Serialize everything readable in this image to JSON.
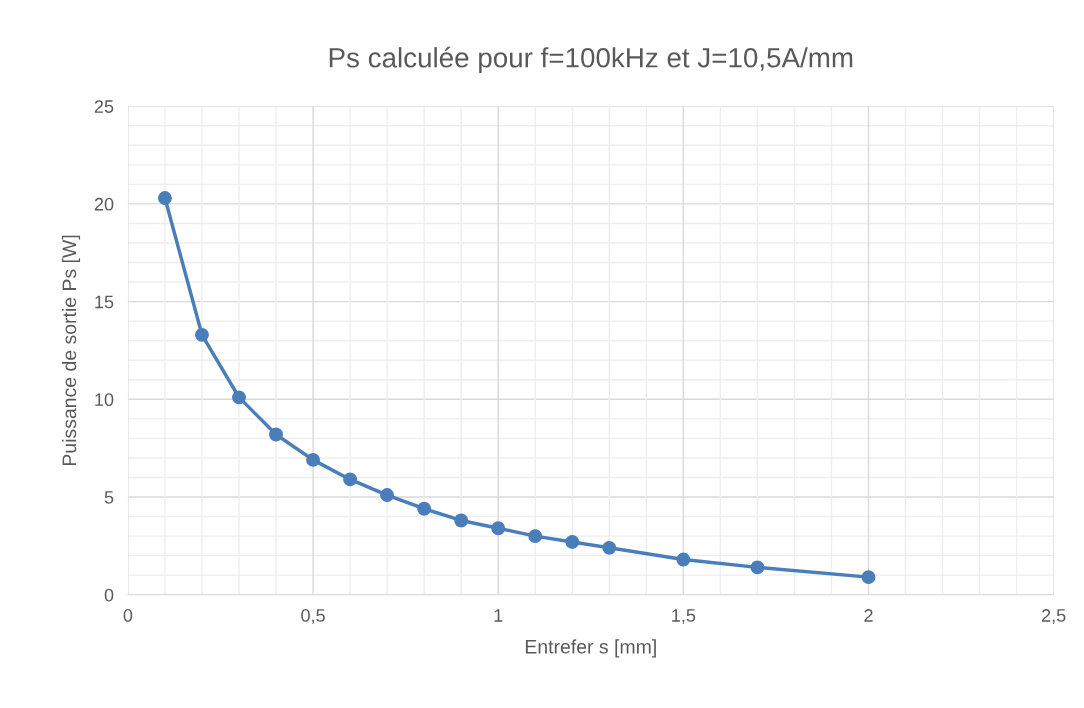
{
  "chart_data": {
    "type": "line",
    "title": "Ps calculée pour f=100kHz et J=10,5A/mm",
    "xlabel": "Entrefer s [mm]",
    "ylabel": "Puissance de sortie Ps [W]",
    "x": [
      0.1,
      0.2,
      0.3,
      0.4,
      0.5,
      0.6,
      0.7,
      0.8,
      0.9,
      1.0,
      1.1,
      1.2,
      1.3,
      1.5,
      1.7,
      2.0
    ],
    "values": [
      20.3,
      13.3,
      10.1,
      8.2,
      6.9,
      5.9,
      5.1,
      4.4,
      3.8,
      3.4,
      3.0,
      2.7,
      2.4,
      1.8,
      1.4,
      0.9
    ],
    "color": "#4a7ebb",
    "marker": "circle",
    "line_style": "solid",
    "grid": true,
    "legend": false,
    "xlim": [
      0,
      2.5
    ],
    "xticks": [
      {
        "value": 0,
        "label": "0"
      },
      {
        "value": 0.5,
        "label": "0,5"
      },
      {
        "value": 1,
        "label": "1"
      },
      {
        "value": 1.5,
        "label": "1,5"
      },
      {
        "value": 2,
        "label": "2"
      },
      {
        "value": 2.5,
        "label": "2,5"
      }
    ],
    "ylim": [
      0,
      25
    ],
    "yticks": [
      0,
      5,
      10,
      15,
      20,
      25
    ]
  }
}
